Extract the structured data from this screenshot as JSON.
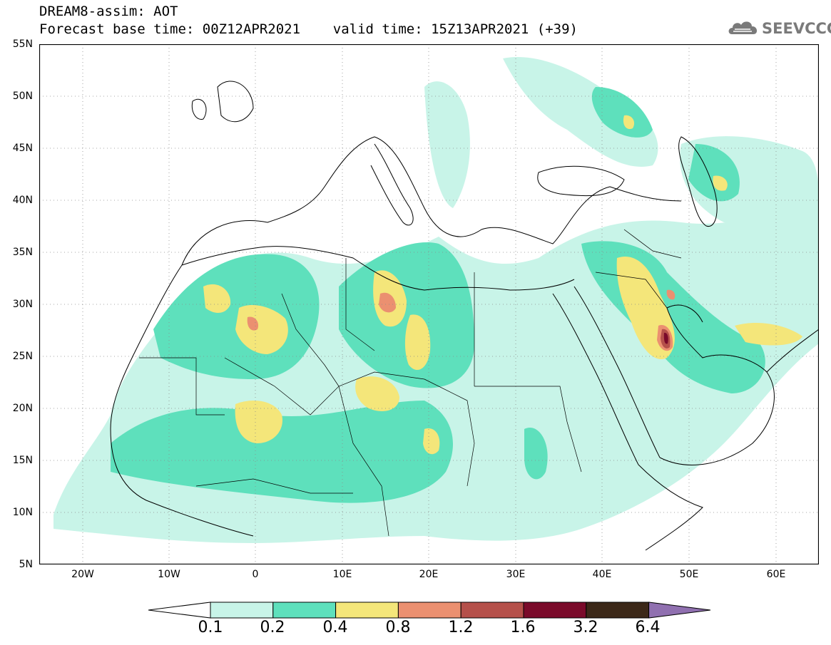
{
  "title": {
    "line1": "DREAM8-assim: AOT",
    "line2": "Forecast base time: 00Z12APR2021    valid time: 15Z13APR2021 (+39)"
  },
  "logo": {
    "text": "SEEVCCC",
    "icon": "cloud-icon"
  },
  "map": {
    "lon_range": [
      -25,
      65
    ],
    "lat_range": [
      5,
      55
    ],
    "y_ticks": [
      "55N",
      "50N",
      "45N",
      "40N",
      "35N",
      "30N",
      "25N",
      "20N",
      "15N",
      "10N",
      "5N"
    ],
    "x_ticks": [
      "20W",
      "10W",
      "0",
      "10E",
      "20E",
      "30E",
      "40E",
      "50E",
      "60E"
    ],
    "grid": "dotted"
  },
  "legend": {
    "levels": [
      "0.1",
      "0.2",
      "0.4",
      "0.8",
      "1.2",
      "1.6",
      "3.2",
      "6.4"
    ],
    "colors": [
      "#c8f4e8",
      "#5ee0bc",
      "#f4e67a",
      "#eb9070",
      "#b5504a",
      "#7a0a2a",
      "#3c2818",
      "#9070b0"
    ]
  }
}
